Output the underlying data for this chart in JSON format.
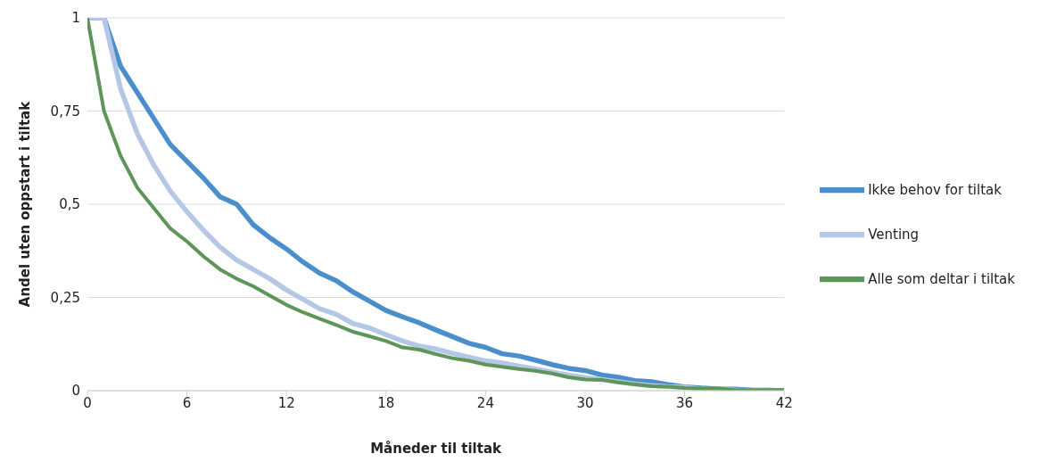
{
  "chart_data": {
    "type": "line",
    "xlabel": "Måneder til tiltak",
    "ylabel": "Andel uten oppstart i tiltak",
    "x": [
      0,
      1,
      2,
      3,
      4,
      5,
      6,
      7,
      8,
      9,
      10,
      11,
      12,
      13,
      14,
      15,
      16,
      17,
      18,
      19,
      20,
      21,
      22,
      23,
      24,
      25,
      26,
      27,
      28,
      29,
      30,
      31,
      32,
      33,
      34,
      35,
      36,
      37,
      38,
      39,
      40,
      41,
      42
    ],
    "series": [
      {
        "name": "Ikke behov for tiltak",
        "color": "#4a8fcb",
        "values": [
          1,
          1,
          0.87,
          0.8,
          0.73,
          0.66,
          0.615,
          0.57,
          0.52,
          0.5,
          0.445,
          0.41,
          0.38,
          0.345,
          0.315,
          0.295,
          0.265,
          0.24,
          0.215,
          0.198,
          0.182,
          0.163,
          0.145,
          0.127,
          0.116,
          0.099,
          0.093,
          0.082,
          0.07,
          0.06,
          0.054,
          0.042,
          0.036,
          0.027,
          0.024,
          0.016,
          0.01,
          0.007,
          0.005,
          0.004,
          0.002,
          0.001,
          0
        ]
      },
      {
        "name": "Venting",
        "color": "#b4c7e7",
        "values": [
          1,
          1,
          0.81,
          0.69,
          0.605,
          0.535,
          0.48,
          0.43,
          0.385,
          0.35,
          0.325,
          0.3,
          0.27,
          0.245,
          0.22,
          0.205,
          0.18,
          0.168,
          0.15,
          0.133,
          0.12,
          0.112,
          0.1,
          0.09,
          0.08,
          0.074,
          0.066,
          0.058,
          0.05,
          0.042,
          0.035,
          0.03,
          0.024,
          0.018,
          0.014,
          0.011,
          0.009,
          0.005,
          0.004,
          0.002,
          0.001,
          0,
          0
        ]
      },
      {
        "name": "Alle som deltar i tiltak",
        "color": "#5e9558",
        "values": [
          1,
          0.75,
          0.63,
          0.545,
          0.49,
          0.435,
          0.4,
          0.36,
          0.325,
          0.3,
          0.28,
          0.255,
          0.23,
          0.21,
          0.193,
          0.176,
          0.158,
          0.146,
          0.133,
          0.116,
          0.11,
          0.098,
          0.087,
          0.08,
          0.07,
          0.064,
          0.058,
          0.053,
          0.046,
          0.036,
          0.03,
          0.029,
          0.022,
          0.017,
          0.012,
          0.011,
          0.007,
          0.006,
          0.006,
          0.002,
          0.002,
          0.002,
          0.002
        ]
      }
    ],
    "xlim": [
      0,
      42
    ],
    "xticks": [
      0,
      6,
      12,
      18,
      24,
      30,
      36,
      42
    ],
    "ylim": [
      0,
      1
    ],
    "yticks": [
      0,
      {
        "value": 0.25,
        "label": "0,25"
      },
      {
        "value": 0.5,
        "label": "0,5"
      },
      {
        "value": 0.75,
        "label": "0,75"
      },
      1
    ],
    "grid": "y",
    "legend": "right",
    "marker": "none",
    "line_style": "solid"
  }
}
